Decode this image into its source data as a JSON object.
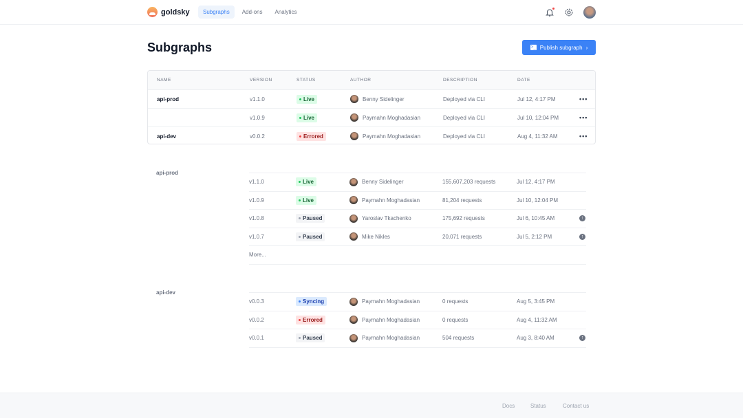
{
  "brand": "goldsky",
  "nav": [
    {
      "label": "Subgraphs",
      "active": true
    },
    {
      "label": "Add-ons"
    },
    {
      "label": "Analytics"
    }
  ],
  "page_title": "Subgraphs",
  "publish_label": "Publish subgraph",
  "table": {
    "headers": [
      "NAME",
      "VERSION",
      "STATUS",
      "AUTHOR",
      "DESCRIPTION",
      "DATE"
    ],
    "rows": [
      {
        "name": "api-prod",
        "version": "v1.1.0",
        "status": "Live",
        "author": "Benny Sidelinger",
        "description": "Deployed via CLI",
        "date": "Jul 12, 4:17 PM"
      },
      {
        "name": "",
        "version": "v1.0.9",
        "status": "Live",
        "author": "Paymahn Moghadasian",
        "description": "Deployed via CLI",
        "date": "Jul 10, 12:04 PM"
      },
      {
        "name": "api-dev",
        "version": "v0.0.2",
        "status": "Errored",
        "author": "Paymahn Moghadasian",
        "description": "Deployed via CLI",
        "date": "Aug 4, 11:32 AM"
      }
    ]
  },
  "groups": [
    {
      "label": "api-prod",
      "rows": [
        {
          "version": "v1.1.0",
          "status": "Live",
          "author": "Benny Sidelinger",
          "requests": "155,607,203 requests",
          "date": "Jul 12, 4:17 PM",
          "action": false
        },
        {
          "version": "v1.0.9",
          "status": "Live",
          "author": "Paymahn Moghadasian",
          "requests": "81,204 requests",
          "date": "Jul 10, 12:04 PM",
          "action": false
        },
        {
          "version": "v1.0.8",
          "status": "Paused",
          "author": "Yaroslav Tkachenko",
          "requests": "175,692 requests",
          "date": "Jul 6, 10:45 AM",
          "action": true
        },
        {
          "version": "v1.0.7",
          "status": "Paused",
          "author": "Mike Nikles",
          "requests": "20,071 requests",
          "date": "Jul 5, 2:12 PM",
          "action": true
        }
      ],
      "more": "More..."
    },
    {
      "label": "api-dev",
      "rows": [
        {
          "version": "v0.0.3",
          "status": "Syncing",
          "author": "Paymahn Moghadasian",
          "requests": "0 requests",
          "date": "Aug 5, 3:45 PM",
          "action": false
        },
        {
          "version": "v0.0.2",
          "status": "Errored",
          "author": "Paymahn Moghadasian",
          "requests": "0 requests",
          "date": "Aug 4, 11:32 AM",
          "action": false
        },
        {
          "version": "v0.0.1",
          "status": "Paused",
          "author": "Paymahn Moghadasian",
          "requests": "504 requests",
          "date": "Aug 3, 8:40 AM",
          "action": true
        }
      ]
    }
  ],
  "footer": [
    "Docs",
    "Status",
    "Contact us"
  ]
}
